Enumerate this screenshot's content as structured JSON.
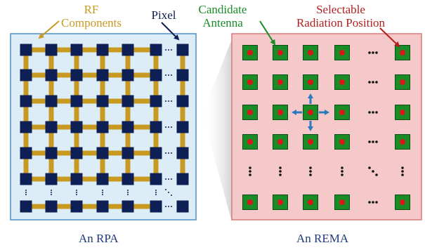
{
  "rpa": {
    "rf_label_line1": "RF",
    "rf_label_line2": "Components",
    "pixel_label": "Pixel",
    "caption": "An RPA",
    "rows": 7,
    "cols": 7,
    "colors": {
      "panel_fill": "#dcedf8",
      "panel_border": "#4d8fc4",
      "pixel": "#0d1f55",
      "rf": "#c89a22",
      "rf_label": "#c89a22",
      "pixel_label": "#0d1f55"
    }
  },
  "rema": {
    "candidate_line1": "Candidate",
    "candidate_line2": "Antenna",
    "selectable_line1": "Selectable",
    "selectable_line2": "Radiation Position",
    "caption": "An REMA",
    "rows": 6,
    "cols": 6,
    "colors": {
      "panel_fill": "#f5c9c9",
      "panel_border": "#d67a7a",
      "antenna": "#198c27",
      "dot": "#d81818",
      "candidate_label": "#198c27",
      "selectable_label": "#b31e1e",
      "arrows": "#2c7ac2"
    }
  },
  "icons": [
    "ellipsis-icon",
    "vertical-ellipsis-icon",
    "diagonal-ellipsis-icon",
    "arrow-icon"
  ]
}
